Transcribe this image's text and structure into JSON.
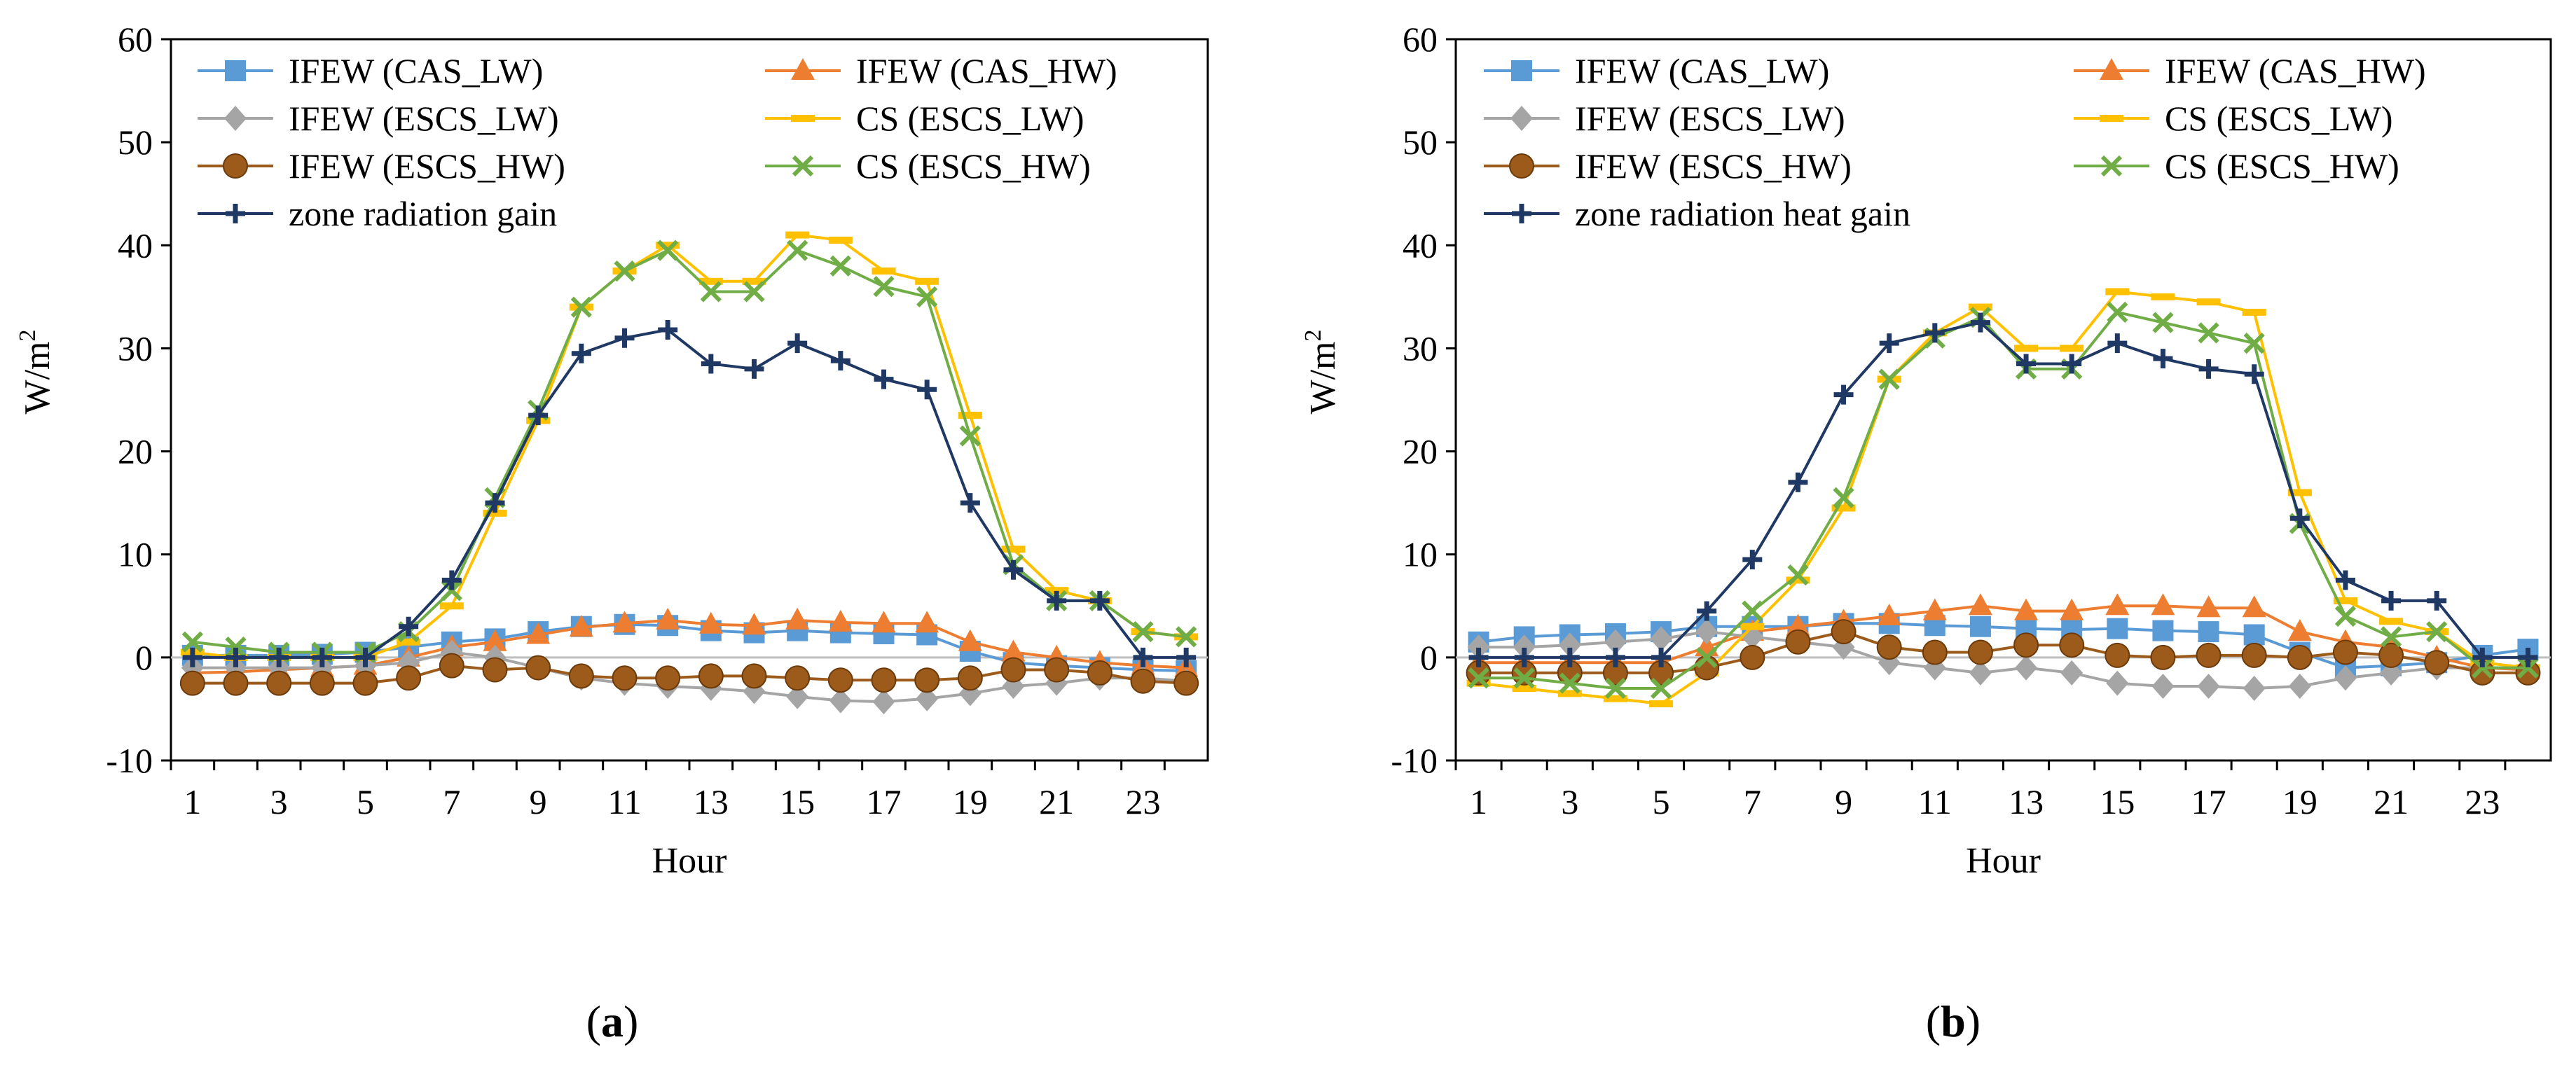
{
  "chart_data": [
    {
      "type": "line",
      "panel_label": "(a)",
      "panel_letter": "a",
      "xlabel": "Hour",
      "ylabel": "W/m",
      "ylabel_sup": "2",
      "ylim": [
        -10,
        60
      ],
      "yticks": [
        -10,
        0,
        10,
        20,
        30,
        40,
        50,
        60
      ],
      "x": [
        1,
        2,
        3,
        4,
        5,
        6,
        7,
        8,
        9,
        10,
        11,
        12,
        13,
        14,
        15,
        16,
        17,
        18,
        19,
        20,
        21,
        22,
        23,
        24
      ],
      "xticks": [
        1,
        3,
        5,
        7,
        9,
        11,
        13,
        15,
        17,
        19,
        21,
        23
      ],
      "legend_position": "top",
      "series": [
        {
          "name": "IFEW (CAS_LW)",
          "color": "#5B9BD5",
          "marker": "square",
          "values": [
            0.2,
            0.2,
            0.2,
            0.3,
            0.5,
            1.0,
            1.5,
            1.8,
            2.5,
            3.0,
            3.2,
            3.1,
            2.6,
            2.4,
            2.6,
            2.4,
            2.3,
            2.2,
            0.6,
            -0.5,
            -0.8,
            -1.0,
            -1.2,
            -1.3
          ]
        },
        {
          "name": "IFEW (CAS_HW)",
          "color": "#ED7D31",
          "marker": "triangle",
          "values": [
            -1.5,
            -1.4,
            -1.2,
            -1.0,
            -0.8,
            0.0,
            1.0,
            1.5,
            2.2,
            2.9,
            3.3,
            3.6,
            3.2,
            3.1,
            3.6,
            3.4,
            3.3,
            3.3,
            1.5,
            0.5,
            0.0,
            -0.5,
            -0.8,
            -1.0
          ]
        },
        {
          "name": "IFEW (ESCS_LW)",
          "color": "#A5A5A5",
          "marker": "diamond",
          "values": [
            -1.0,
            -1.0,
            -1.0,
            -1.0,
            -0.8,
            -0.5,
            0.5,
            0.0,
            -1.0,
            -2.0,
            -2.5,
            -2.8,
            -3.0,
            -3.3,
            -3.8,
            -4.2,
            -4.3,
            -4.0,
            -3.5,
            -2.8,
            -2.5,
            -2.0,
            -2.0,
            -2.3
          ]
        },
        {
          "name": "CS (ESCS_LW)",
          "color": "#FFC000",
          "marker": "dash",
          "values": [
            0.5,
            0.0,
            0.0,
            0.0,
            0.0,
            1.5,
            5.0,
            14.0,
            23.0,
            34.0,
            37.5,
            40.0,
            36.5,
            36.5,
            41.0,
            40.5,
            37.5,
            36.5,
            23.5,
            10.5,
            6.5,
            5.5,
            2.5,
            2.0
          ]
        },
        {
          "name": "IFEW (ESCS_HW)",
          "color": "#9C5B1B",
          "marker": "circle",
          "values": [
            -2.5,
            -2.5,
            -2.5,
            -2.5,
            -2.5,
            -2.0,
            -0.8,
            -1.2,
            -1.0,
            -1.8,
            -2.0,
            -2.0,
            -1.8,
            -1.8,
            -2.0,
            -2.2,
            -2.2,
            -2.2,
            -2.0,
            -1.2,
            -1.2,
            -1.5,
            -2.3,
            -2.5
          ]
        },
        {
          "name": "CS (ESCS_HW)",
          "color": "#70AD47",
          "marker": "x",
          "values": [
            1.5,
            1.0,
            0.5,
            0.5,
            0.5,
            2.5,
            6.5,
            15.5,
            24.0,
            34.0,
            37.5,
            39.5,
            35.5,
            35.5,
            39.5,
            38.0,
            36.0,
            35.0,
            21.5,
            9.0,
            5.5,
            5.5,
            2.5,
            2.0
          ]
        },
        {
          "name": "zone radiation gain",
          "color": "#1F3864",
          "marker": "plus",
          "values": [
            0.0,
            0.0,
            0.0,
            0.0,
            0.0,
            3.0,
            7.5,
            15.0,
            23.5,
            29.5,
            31.0,
            31.8,
            28.5,
            28.0,
            30.5,
            28.8,
            27.0,
            26.0,
            15.0,
            8.5,
            5.5,
            5.5,
            0.0,
            0.0
          ]
        }
      ]
    },
    {
      "type": "line",
      "panel_label": "(b)",
      "panel_letter": "b",
      "xlabel": "Hour",
      "ylabel": "W/m",
      "ylabel_sup": "2",
      "ylim": [
        -10,
        60
      ],
      "yticks": [
        -10,
        0,
        10,
        20,
        30,
        40,
        50,
        60
      ],
      "x": [
        1,
        2,
        3,
        4,
        5,
        6,
        7,
        8,
        9,
        10,
        11,
        12,
        13,
        14,
        15,
        16,
        17,
        18,
        19,
        20,
        21,
        22,
        23,
        24
      ],
      "xticks": [
        1,
        3,
        5,
        7,
        9,
        11,
        13,
        15,
        17,
        19,
        21,
        23
      ],
      "legend_position": "top",
      "series": [
        {
          "name": "IFEW (CAS_LW)",
          "color": "#5B9BD5",
          "marker": "square",
          "values": [
            1.5,
            2.0,
            2.2,
            2.3,
            2.5,
            3.0,
            3.0,
            3.0,
            3.3,
            3.3,
            3.1,
            3.0,
            2.8,
            2.7,
            2.8,
            2.6,
            2.5,
            2.2,
            0.5,
            -1.0,
            -0.8,
            -0.5,
            0.2,
            0.8
          ]
        },
        {
          "name": "IFEW (CAS_HW)",
          "color": "#ED7D31",
          "marker": "triangle",
          "values": [
            -0.5,
            -0.5,
            -0.5,
            -0.5,
            -0.5,
            1.0,
            2.5,
            3.0,
            3.5,
            4.0,
            4.5,
            5.0,
            4.5,
            4.5,
            5.0,
            5.0,
            4.8,
            4.8,
            2.5,
            1.5,
            1.0,
            0.0,
            -1.0,
            -1.2
          ]
        },
        {
          "name": "IFEW (ESCS_LW)",
          "color": "#A5A5A5",
          "marker": "diamond",
          "values": [
            1.0,
            1.0,
            1.2,
            1.5,
            1.8,
            2.5,
            2.0,
            1.5,
            1.0,
            -0.5,
            -1.0,
            -1.5,
            -1.0,
            -1.5,
            -2.5,
            -2.8,
            -2.8,
            -3.0,
            -2.8,
            -2.0,
            -1.5,
            -1.0,
            -1.0,
            -1.0
          ]
        },
        {
          "name": "CS (ESCS_LW)",
          "color": "#FFC000",
          "marker": "dash",
          "values": [
            -2.5,
            -3.0,
            -3.5,
            -4.0,
            -4.5,
            -1.5,
            3.0,
            7.5,
            14.5,
            27.0,
            31.5,
            34.0,
            30.0,
            30.0,
            35.5,
            35.0,
            34.5,
            33.5,
            16.0,
            5.5,
            3.5,
            2.5,
            -0.5,
            -1.0
          ]
        },
        {
          "name": "IFEW  (ESCS_HW)",
          "color": "#9C5B1B",
          "marker": "circle",
          "values": [
            -1.5,
            -1.5,
            -1.5,
            -1.5,
            -1.5,
            -1.0,
            0.0,
            1.5,
            2.5,
            1.0,
            0.5,
            0.5,
            1.2,
            1.2,
            0.2,
            0.0,
            0.2,
            0.2,
            0.0,
            0.5,
            0.2,
            -0.5,
            -1.5,
            -1.5
          ]
        },
        {
          "name": "CS (ESCS_HW)",
          "color": "#70AD47",
          "marker": "x",
          "values": [
            -2.0,
            -2.0,
            -2.5,
            -3.0,
            -3.0,
            0.0,
            4.5,
            8.0,
            15.5,
            27.0,
            31.0,
            33.0,
            28.0,
            28.0,
            33.5,
            32.5,
            31.5,
            30.5,
            13.0,
            4.0,
            2.0,
            2.5,
            -1.0,
            -1.0
          ]
        },
        {
          "name": "zone radiation heat gain",
          "color": "#1F3864",
          "marker": "plus",
          "values": [
            0.0,
            0.0,
            0.0,
            0.0,
            0.0,
            4.5,
            9.5,
            17.0,
            25.5,
            30.5,
            31.5,
            32.5,
            28.5,
            28.5,
            30.5,
            29.0,
            28.0,
            27.5,
            13.5,
            7.5,
            5.5,
            5.5,
            0.0,
            0.0
          ]
        }
      ]
    }
  ]
}
